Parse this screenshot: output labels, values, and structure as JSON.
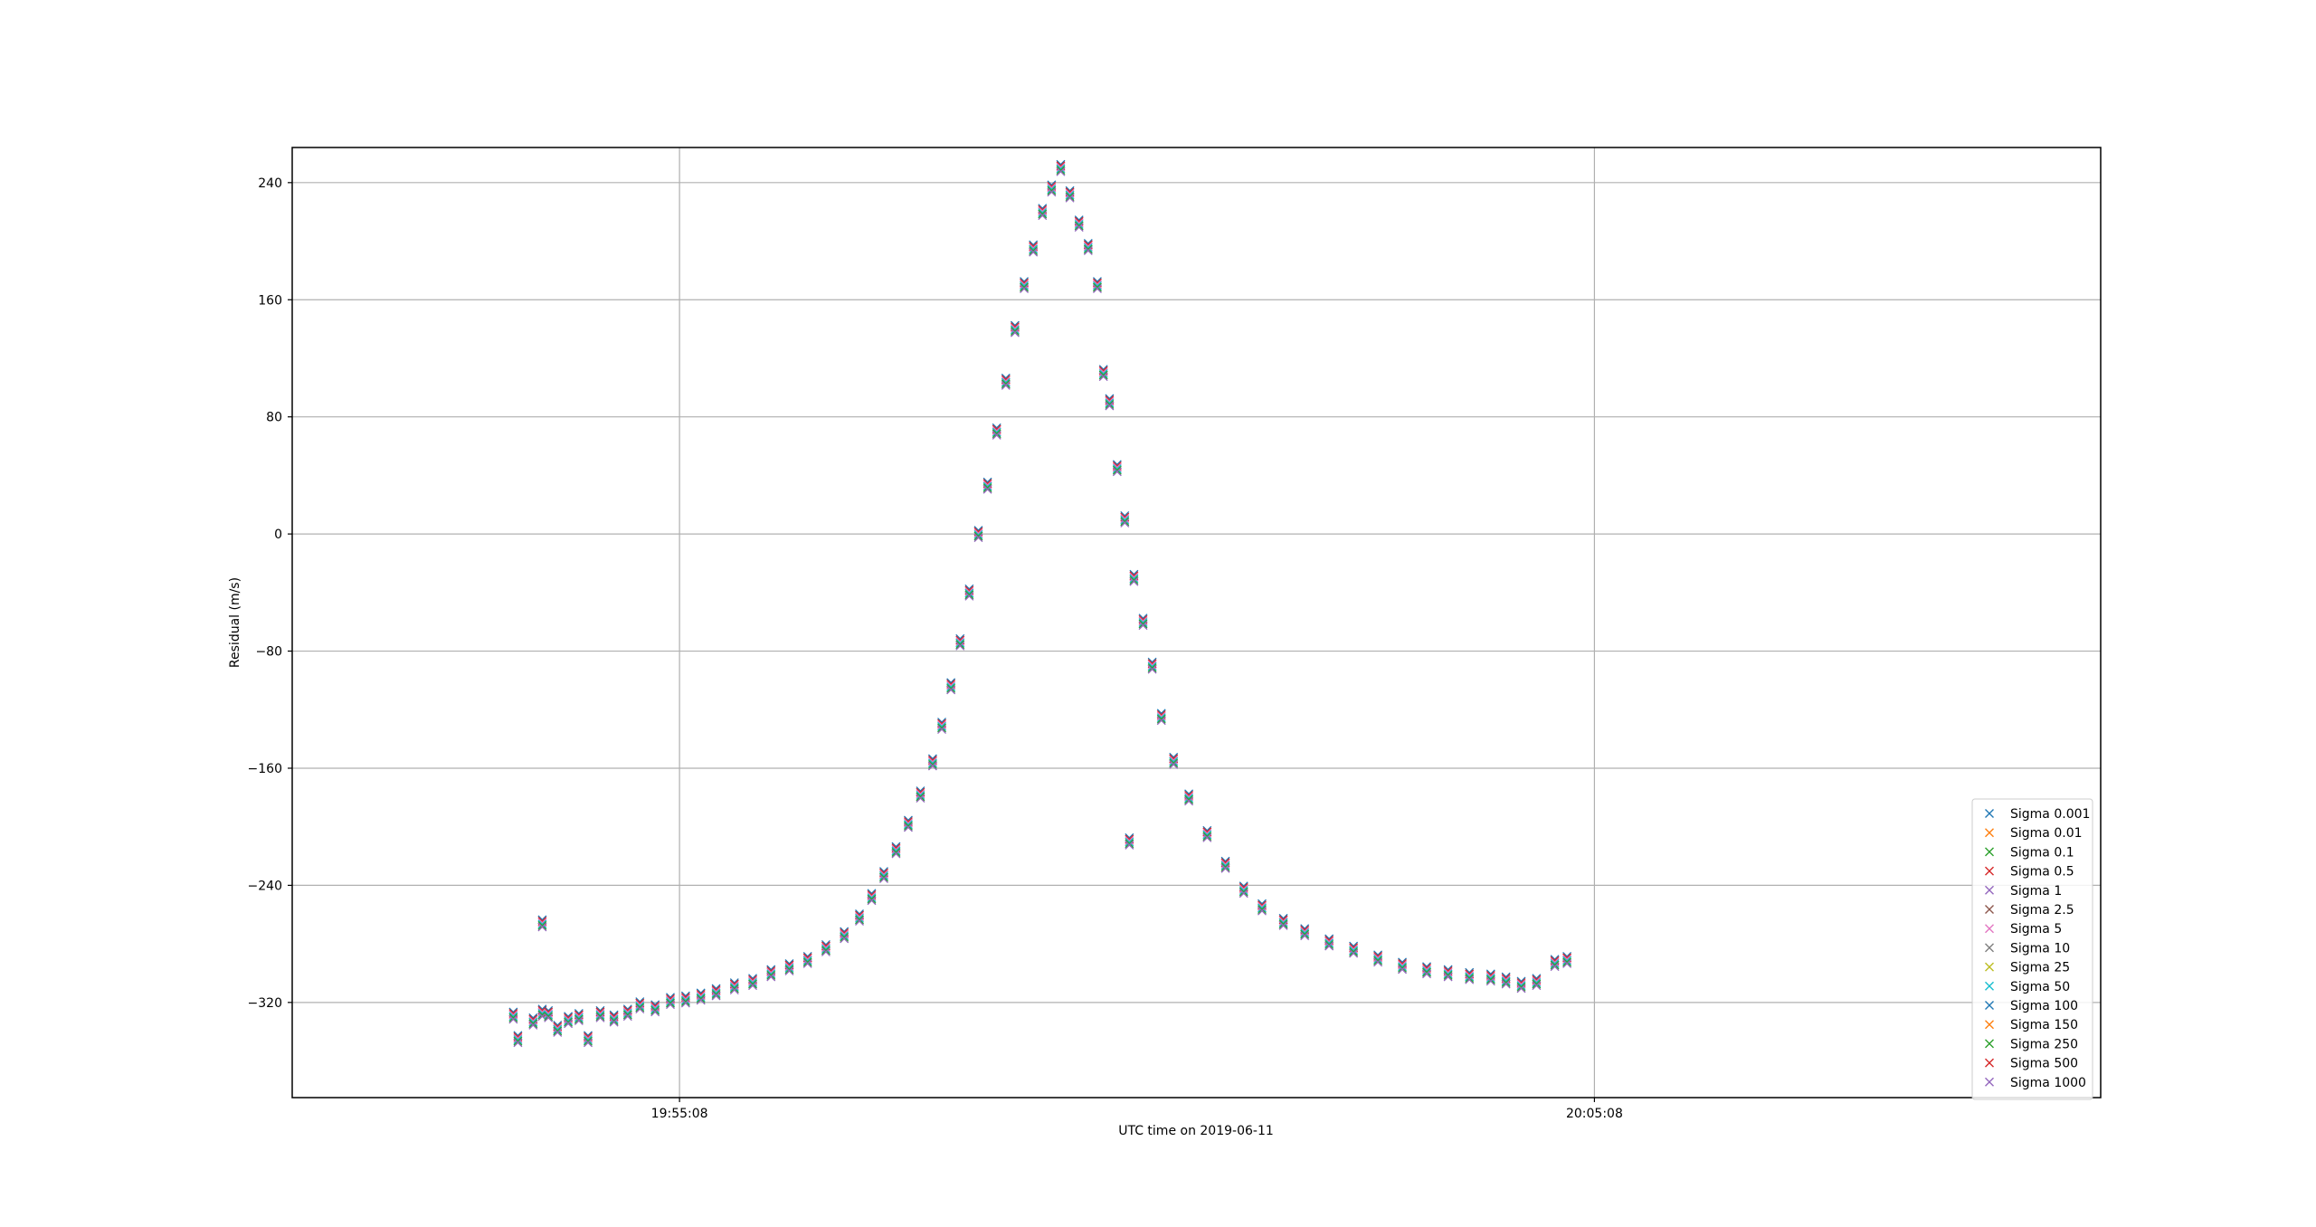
{
  "chart_data": {
    "type": "scatter",
    "title": "",
    "xlabel": "UTC time on 2019-06-11",
    "ylabel": "Residual (m/s)",
    "x_unit": "UTC time",
    "xlim": [
      "19:50:54",
      "20:10:40"
    ],
    "ylim": [
      -385,
      264
    ],
    "x_ticks": [
      "19:55:08",
      "20:05:08"
    ],
    "y_ticks": [
      240,
      160,
      80,
      0,
      -80,
      -160,
      -240,
      -320
    ],
    "grid": true,
    "legend_position": "lower right",
    "marker": "x",
    "colors": [
      "#1f77b4",
      "#ff7f0e",
      "#2ca02c",
      "#d62728",
      "#9467bd",
      "#8c564b",
      "#e377c2",
      "#7f7f7f",
      "#bcbd22",
      "#17becf",
      "#1f77b4",
      "#ff7f0e",
      "#2ca02c",
      "#d62728",
      "#9467bd"
    ],
    "points": [
      [
        "19:53:19",
        -329
      ],
      [
        "19:53:22",
        -345
      ],
      [
        "19:53:32",
        -333
      ],
      [
        "19:53:38",
        -327
      ],
      [
        "19:53:42",
        -328
      ],
      [
        "19:53:38",
        -266
      ],
      [
        "19:53:48",
        -338
      ],
      [
        "19:53:55",
        -332
      ],
      [
        "19:54:02",
        -330
      ],
      [
        "19:54:08",
        -345
      ],
      [
        "19:54:16",
        -328
      ],
      [
        "19:54:25",
        -331
      ],
      [
        "19:54:34",
        -327
      ],
      [
        "19:54:42",
        -322
      ],
      [
        "19:54:52",
        -324
      ],
      [
        "19:55:02",
        -319
      ],
      [
        "19:55:12",
        -318
      ],
      [
        "19:55:22",
        -316
      ],
      [
        "19:55:32",
        -313
      ],
      [
        "19:55:44",
        -309
      ],
      [
        "19:55:56",
        -306
      ],
      [
        "19:56:08",
        -300
      ],
      [
        "19:56:20",
        -296
      ],
      [
        "19:56:32",
        -291
      ],
      [
        "19:56:44",
        -283
      ],
      [
        "19:56:56",
        -274
      ],
      [
        "19:57:06",
        -262
      ],
      [
        "19:57:14",
        -248
      ],
      [
        "19:57:22",
        -233
      ],
      [
        "19:57:30",
        -216
      ],
      [
        "19:57:38",
        -198
      ],
      [
        "19:57:46",
        -178
      ],
      [
        "19:57:54",
        -156
      ],
      [
        "19:58:00",
        -131
      ],
      [
        "19:58:06",
        -104
      ],
      [
        "19:58:12",
        -74
      ],
      [
        "19:58:18",
        -40
      ],
      [
        "19:58:24",
        0
      ],
      [
        "19:58:30",
        33
      ],
      [
        "19:58:36",
        70
      ],
      [
        "19:58:42",
        104
      ],
      [
        "19:58:48",
        140
      ],
      [
        "19:58:54",
        170
      ],
      [
        "19:59:00",
        195
      ],
      [
        "19:59:06",
        220
      ],
      [
        "19:59:12",
        236
      ],
      [
        "19:59:18",
        250
      ],
      [
        "19:59:24",
        232
      ],
      [
        "19:59:30",
        212
      ],
      [
        "19:59:36",
        196
      ],
      [
        "19:59:42",
        170
      ],
      [
        "19:59:46",
        110
      ],
      [
        "19:59:50",
        90
      ],
      [
        "19:59:55",
        45
      ],
      [
        "20:00:00",
        10
      ],
      [
        "20:00:03",
        -210
      ],
      [
        "20:00:06",
        -30
      ],
      [
        "20:00:12",
        -60
      ],
      [
        "20:00:18",
        -90
      ],
      [
        "20:00:24",
        -125
      ],
      [
        "20:00:32",
        -155
      ],
      [
        "20:00:42",
        -180
      ],
      [
        "20:00:54",
        -205
      ],
      [
        "20:01:06",
        -226
      ],
      [
        "20:01:18",
        -243
      ],
      [
        "20:01:30",
        -255
      ],
      [
        "20:01:44",
        -265
      ],
      [
        "20:01:58",
        -272
      ],
      [
        "20:02:14",
        -279
      ],
      [
        "20:02:30",
        -284
      ],
      [
        "20:02:46",
        -290
      ],
      [
        "20:03:02",
        -295
      ],
      [
        "20:03:18",
        -298
      ],
      [
        "20:03:32",
        -300
      ],
      [
        "20:03:46",
        -302
      ],
      [
        "20:04:00",
        -303
      ],
      [
        "20:04:10",
        -305
      ],
      [
        "20:04:20",
        -308
      ],
      [
        "20:04:30",
        -306
      ],
      [
        "20:04:42",
        -293
      ],
      [
        "20:04:50",
        -291
      ]
    ],
    "series": [
      {
        "name": "Sigma 0.001"
      },
      {
        "name": "Sigma 0.01"
      },
      {
        "name": "Sigma 0.1"
      },
      {
        "name": "Sigma 0.5"
      },
      {
        "name": "Sigma 1"
      },
      {
        "name": "Sigma 2.5"
      },
      {
        "name": "Sigma 5"
      },
      {
        "name": "Sigma 10"
      },
      {
        "name": "Sigma 25"
      },
      {
        "name": "Sigma 50"
      },
      {
        "name": "Sigma 100"
      },
      {
        "name": "Sigma 150"
      },
      {
        "name": "Sigma 250"
      },
      {
        "name": "Sigma 500"
      },
      {
        "name": "Sigma 1000"
      }
    ]
  }
}
